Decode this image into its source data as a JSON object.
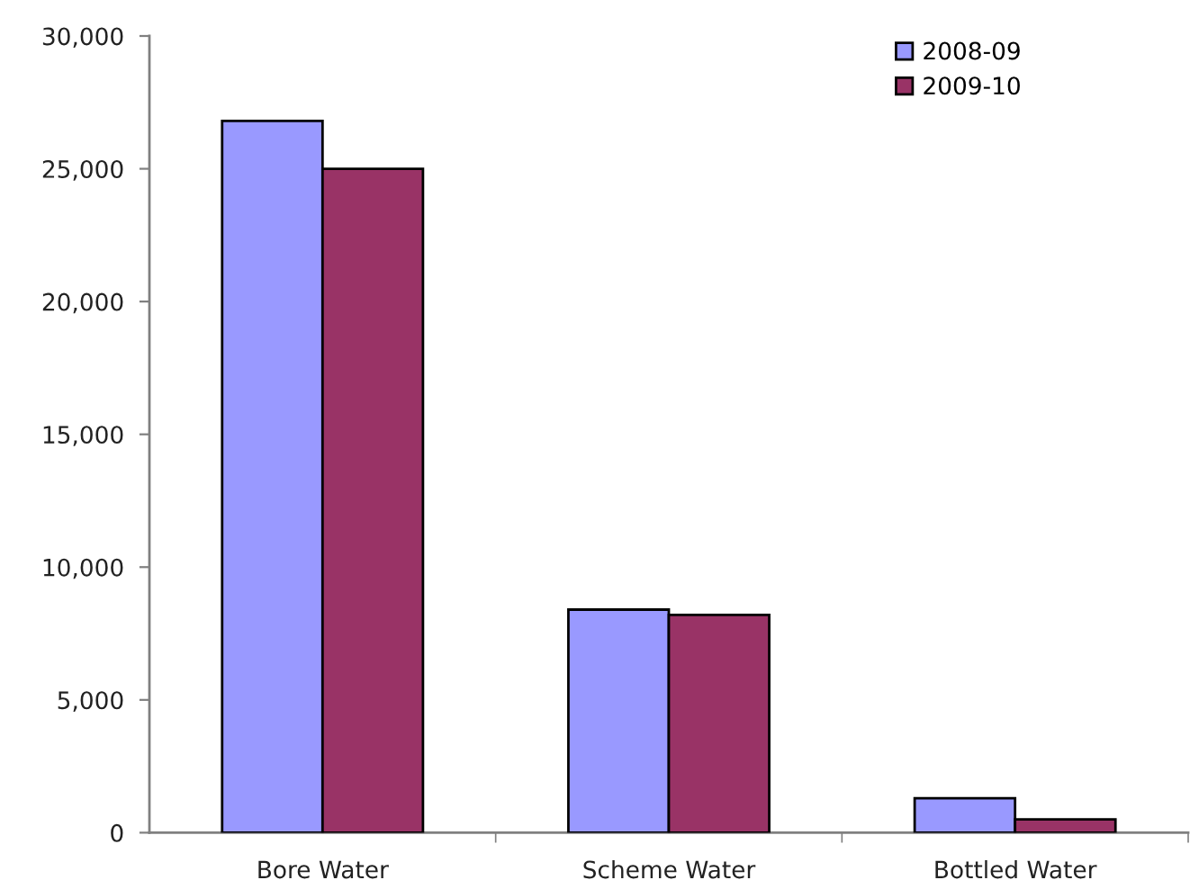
{
  "chart_data": {
    "type": "bar",
    "categories": [
      "Bore Water",
      "Scheme Water",
      "Bottled Water"
    ],
    "series": [
      {
        "name": "2008-09",
        "color": "#9999ff",
        "values": [
          26800,
          8400,
          1300
        ]
      },
      {
        "name": "2009-10",
        "color": "#993366",
        "values": [
          25000,
          8200,
          500
        ]
      }
    ],
    "ylim": [
      0,
      30000
    ],
    "yticks": [
      {
        "value": 0,
        "label": "0"
      },
      {
        "value": 5000,
        "label": "5,000"
      },
      {
        "value": 10000,
        "label": "10,000"
      },
      {
        "value": 15000,
        "label": "15,000"
      },
      {
        "value": 20000,
        "label": "20,000"
      },
      {
        "value": 25000,
        "label": "25,000"
      },
      {
        "value": 30000,
        "label": "30,000"
      }
    ],
    "grid": false,
    "legend": "top right"
  }
}
